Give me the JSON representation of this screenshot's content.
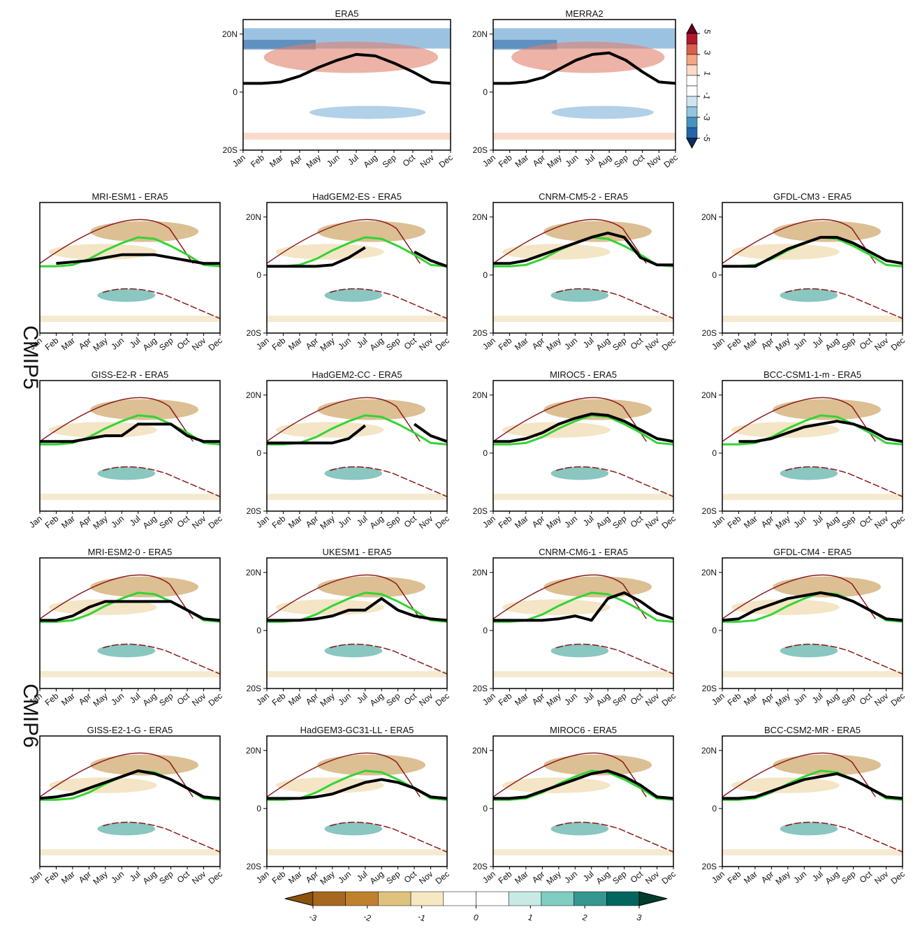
{
  "row_labels": [
    "CMIP5",
    "CMIP6"
  ],
  "reference_color": "#33d433",
  "chart_data": [
    {
      "type": "line",
      "title": "ERA5",
      "categories": [
        "Jan",
        "Feb",
        "Mar",
        "Apr",
        "May",
        "Jun",
        "Jul",
        "Aug",
        "Sep",
        "Oct",
        "Nov",
        "Dec"
      ],
      "values": [
        3,
        3,
        3.5,
        5.5,
        8.5,
        11,
        13,
        12.5,
        10,
        7,
        3.5,
        3
      ],
      "color": "#000000",
      "ylim": [
        -20,
        25
      ],
      "yticks": [
        {
          "value": 20,
          "label": "20N"
        },
        0,
        {
          "value": -20,
          "label": "20S"
        }
      ]
    },
    {
      "type": "line",
      "title": "MERRA2",
      "categories": [
        "Jan",
        "Feb",
        "Mar",
        "Apr",
        "May",
        "Jun",
        "Jul",
        "Aug",
        "Sep",
        "Oct",
        "Nov",
        "Dec"
      ],
      "values": [
        3,
        3,
        3.5,
        5,
        8,
        11,
        13,
        13.5,
        11,
        7,
        3.5,
        3
      ],
      "color": "#000000",
      "ylim": [
        -20,
        25
      ],
      "yticks": [
        {
          "value": 20,
          "label": "20N"
        },
        0,
        {
          "value": -20,
          "label": "20S"
        }
      ]
    },
    {
      "type": "line",
      "title": "MRI-ESM1 - ERA5",
      "categories": [
        "Jan",
        "Feb",
        "Mar",
        "Apr",
        "May",
        "Jun",
        "Jul",
        "Aug",
        "Sep",
        "Oct",
        "Nov",
        "Dec"
      ],
      "values": [
        null,
        4,
        4.5,
        5,
        6,
        7,
        7,
        7,
        6,
        5,
        4,
        4
      ],
      "color": "#000000",
      "ylim": [
        -20,
        25
      ]
    },
    {
      "type": "line",
      "title": "HadGEM2-ES - ERA5",
      "categories": [
        "Jan",
        "Feb",
        "Mar",
        "Apr",
        "May",
        "Jun",
        "Jul",
        "Aug",
        "Sep",
        "Oct",
        "Nov",
        "Dec"
      ],
      "values": [
        3,
        3,
        3,
        3,
        3.5,
        6,
        9.5,
        null,
        null,
        8,
        5,
        3
      ],
      "color": "#000000",
      "ylim": [
        -20,
        25
      ],
      "yticks": [
        {
          "value": 20,
          "label": "20N"
        },
        0,
        {
          "value": -20,
          "label": "20S"
        }
      ]
    },
    {
      "type": "line",
      "title": "CNRM-CM5-2 - ERA5",
      "categories": [
        "Jan",
        "Feb",
        "Mar",
        "Apr",
        "May",
        "Jun",
        "Jul",
        "Aug",
        "Sep",
        "Oct",
        "Nov",
        "Dec"
      ],
      "values": [
        4,
        4,
        5,
        7,
        9,
        11,
        13,
        14.5,
        13,
        6,
        3.5,
        3.5
      ],
      "color": "#000000",
      "ylim": [
        -20,
        25
      ],
      "yticks": [
        {
          "value": 20,
          "label": "20N"
        },
        0,
        {
          "value": -20,
          "label": "20S"
        }
      ]
    },
    {
      "type": "line",
      "title": "GFDL-CM3 - ERA5",
      "categories": [
        "Jan",
        "Feb",
        "Mar",
        "Apr",
        "May",
        "Jun",
        "Jul",
        "Aug",
        "Sep",
        "Oct",
        "Nov",
        "Dec"
      ],
      "values": [
        3,
        3,
        3,
        6,
        9,
        11,
        13,
        13,
        11,
        8,
        5,
        4
      ],
      "color": "#000000",
      "ylim": [
        -20,
        25
      ],
      "yticks": [
        {
          "value": 20,
          "label": "20N"
        },
        0,
        {
          "value": -20,
          "label": "20S"
        }
      ]
    },
    {
      "type": "line",
      "title": "GISS-E2-R - ERA5",
      "categories": [
        "Jan",
        "Feb",
        "Mar",
        "Apr",
        "May",
        "Jun",
        "Jul",
        "Aug",
        "Sep",
        "Oct",
        "Nov",
        "Dec"
      ],
      "values": [
        4,
        4,
        4,
        5,
        6,
        6,
        10,
        10,
        10,
        6,
        4,
        4
      ],
      "color": "#000000",
      "ylim": [
        -20,
        25
      ]
    },
    {
      "type": "line",
      "title": "HadGEM2-CC - ERA5",
      "categories": [
        "Jan",
        "Feb",
        "Mar",
        "Apr",
        "May",
        "Jun",
        "Jul",
        "Aug",
        "Sep",
        "Oct",
        "Nov",
        "Dec"
      ],
      "values": [
        3.5,
        3.5,
        3.5,
        3.5,
        3.5,
        5,
        9.5,
        null,
        null,
        10,
        6,
        4
      ],
      "color": "#000000",
      "ylim": [
        -20,
        25
      ],
      "yticks": [
        {
          "value": 20,
          "label": "20N"
        },
        0,
        {
          "value": -20,
          "label": "20S"
        }
      ]
    },
    {
      "type": "line",
      "title": "MIROC5 - ERA5",
      "categories": [
        "Jan",
        "Feb",
        "Mar",
        "Apr",
        "May",
        "Jun",
        "Jul",
        "Aug",
        "Sep",
        "Oct",
        "Nov",
        "Dec"
      ],
      "values": [
        4,
        4,
        5,
        7,
        10,
        12,
        13.5,
        13,
        11,
        8,
        5,
        4
      ],
      "color": "#000000",
      "ylim": [
        -20,
        25
      ],
      "yticks": [
        {
          "value": 20,
          "label": "20N"
        },
        0,
        {
          "value": -20,
          "label": "20S"
        }
      ]
    },
    {
      "type": "line",
      "title": "BCC-CSM1-1-m - ERA5",
      "categories": [
        "Jan",
        "Feb",
        "Mar",
        "Apr",
        "May",
        "Jun",
        "Jul",
        "Aug",
        "Sep",
        "Oct",
        "Nov",
        "Dec"
      ],
      "values": [
        null,
        4,
        4,
        5,
        7,
        9,
        10,
        11,
        10,
        8,
        5,
        4
      ],
      "color": "#000000",
      "ylim": [
        -20,
        25
      ],
      "yticks": [
        {
          "value": 20,
          "label": "20N"
        },
        0,
        {
          "value": -20,
          "label": "20S"
        }
      ]
    },
    {
      "type": "line",
      "title": "MRI-ESM2-0 - ERA5",
      "categories": [
        "Jan",
        "Feb",
        "Mar",
        "Apr",
        "May",
        "Jun",
        "Jul",
        "Aug",
        "Sep",
        "Oct",
        "Nov",
        "Dec"
      ],
      "values": [
        3.5,
        3.5,
        5,
        8,
        10,
        10,
        10,
        10,
        10,
        7,
        4,
        3.5
      ],
      "color": "#000000",
      "ylim": [
        -20,
        25
      ]
    },
    {
      "type": "line",
      "title": "UKESM1 - ERA5",
      "categories": [
        "Jan",
        "Feb",
        "Mar",
        "Apr",
        "May",
        "Jun",
        "Jul",
        "Aug",
        "Sep",
        "Oct",
        "Nov",
        "Dec"
      ],
      "values": [
        3.5,
        3.5,
        3.5,
        4,
        5,
        7,
        7,
        11,
        7,
        5,
        4,
        3.5
      ],
      "color": "#000000",
      "ylim": [
        -20,
        25
      ],
      "yticks": [
        {
          "value": 20,
          "label": "20N"
        },
        0,
        {
          "value": -20,
          "label": "20S"
        }
      ]
    },
    {
      "type": "line",
      "title": "CNRM-CM6-1 - ERA5",
      "categories": [
        "Jan",
        "Feb",
        "Mar",
        "Apr",
        "May",
        "Jun",
        "Jul",
        "Aug",
        "Sep",
        "Oct",
        "Nov",
        "Dec"
      ],
      "values": [
        3.5,
        3.5,
        3.5,
        3.5,
        4,
        5,
        3.5,
        11,
        13,
        10,
        6,
        4
      ],
      "color": "#000000",
      "ylim": [
        -20,
        25
      ],
      "yticks": [
        {
          "value": 20,
          "label": "20N"
        },
        0,
        {
          "value": -20,
          "label": "20S"
        }
      ]
    },
    {
      "type": "line",
      "title": "GFDL-CM4 - ERA5",
      "categories": [
        "Jan",
        "Feb",
        "Mar",
        "Apr",
        "May",
        "Jun",
        "Jul",
        "Aug",
        "Sep",
        "Oct",
        "Nov",
        "Dec"
      ],
      "values": [
        3.5,
        4,
        7,
        9,
        11,
        12,
        13,
        12,
        10,
        7,
        4,
        3.5
      ],
      "color": "#000000",
      "ylim": [
        -20,
        25
      ],
      "yticks": [
        {
          "value": 20,
          "label": "20N"
        },
        0,
        {
          "value": -20,
          "label": "20S"
        }
      ]
    },
    {
      "type": "line",
      "title": "GISS-E2-1-G - ERA5",
      "categories": [
        "Jan",
        "Feb",
        "Mar",
        "Apr",
        "May",
        "Jun",
        "Jul",
        "Aug",
        "Sep",
        "Oct",
        "Nov",
        "Dec"
      ],
      "values": [
        3.5,
        4,
        5,
        7,
        9,
        11,
        13,
        12,
        10,
        7,
        4,
        3.5
      ],
      "color": "#000000",
      "ylim": [
        -20,
        25
      ]
    },
    {
      "type": "line",
      "title": "HadGEM3-GC31-LL - ERA5",
      "categories": [
        "Jan",
        "Feb",
        "Mar",
        "Apr",
        "May",
        "Jun",
        "Jul",
        "Aug",
        "Sep",
        "Oct",
        "Nov",
        "Dec"
      ],
      "values": [
        3.5,
        3.5,
        3.5,
        4,
        5,
        7,
        9,
        10,
        9,
        7,
        4,
        3.5
      ],
      "color": "#000000",
      "ylim": [
        -20,
        25
      ],
      "yticks": [
        {
          "value": 20,
          "label": "20N"
        },
        0,
        {
          "value": -20,
          "label": "20S"
        }
      ]
    },
    {
      "type": "line",
      "title": "MIROC6 - ERA5",
      "categories": [
        "Jan",
        "Feb",
        "Mar",
        "Apr",
        "May",
        "Jun",
        "Jul",
        "Aug",
        "Sep",
        "Oct",
        "Nov",
        "Dec"
      ],
      "values": [
        3.5,
        3.5,
        4,
        6,
        8,
        10,
        12,
        13,
        11,
        8,
        4,
        3.5
      ],
      "color": "#000000",
      "ylim": [
        -20,
        25
      ],
      "yticks": [
        {
          "value": 20,
          "label": "20N"
        },
        0,
        {
          "value": -20,
          "label": "20S"
        }
      ]
    },
    {
      "type": "line",
      "title": "BCC-CSM2-MR - ERA5",
      "categories": [
        "Jan",
        "Feb",
        "Mar",
        "Apr",
        "May",
        "Jun",
        "Jul",
        "Aug",
        "Sep",
        "Oct",
        "Nov",
        "Dec"
      ],
      "values": [
        3.5,
        3.5,
        4,
        6,
        8,
        10,
        11,
        12,
        10,
        7,
        4,
        3.5
      ],
      "color": "#000000",
      "ylim": [
        -20,
        25
      ],
      "yticks": [
        {
          "value": 20,
          "label": "20N"
        },
        0,
        {
          "value": -20,
          "label": "20S"
        }
      ]
    }
  ],
  "colorbars": [
    {
      "orientation": "vertical",
      "lim": [
        -5,
        5
      ],
      "ticks": [
        5,
        3,
        1,
        -1,
        -3,
        -5
      ],
      "colors": [
        "#67001f",
        "#b2182b",
        "#d6604d",
        "#f4a582",
        "#fddbc7",
        "#ffffff",
        "#ffffff",
        "#d1e5f0",
        "#92c5de",
        "#4393c3",
        "#2166ac",
        "#053061"
      ]
    },
    {
      "orientation": "horizontal",
      "lim": [
        -3,
        3
      ],
      "ticks": [
        -3,
        -2,
        -1,
        0,
        1,
        2,
        3
      ],
      "colors": [
        "#8c510a",
        "#a6671e",
        "#bf812d",
        "#dfc27d",
        "#f6e8c3",
        "#ffffff",
        "#ffffff",
        "#c7eae5",
        "#80cdc1",
        "#35978f",
        "#01665e",
        "#003c30"
      ]
    }
  ]
}
